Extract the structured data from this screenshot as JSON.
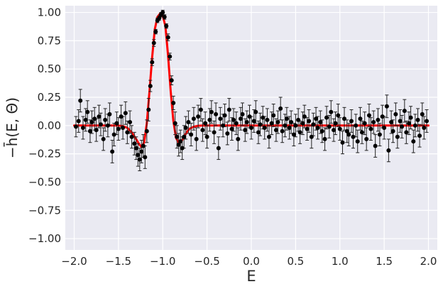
{
  "chart_data": {
    "type": "scatter",
    "style": "seaborn-darkgrid",
    "colors": {
      "background": "#EAEAF2",
      "grid": "#FFFFFF",
      "points": "#000000",
      "fit_line": "#FF0000"
    },
    "xlabel": "E",
    "ylabel": "−h̄(E, Θ)",
    "xlim": [
      -2.1,
      2.1
    ],
    "ylim": [
      -1.1,
      1.06
    ],
    "xticks": [
      -2.0,
      -1.5,
      -1.0,
      -0.5,
      0.0,
      0.5,
      1.0,
      1.5,
      2.0
    ],
    "yticks": [
      -1.0,
      -0.75,
      -0.5,
      -0.25,
      0.0,
      0.25,
      0.5,
      0.75,
      1.0
    ],
    "xtick_labels": [
      "−2.0",
      "−1.5",
      "−1.0",
      "−0.5",
      "0.0",
      "0.5",
      "1.0",
      "1.5",
      "2.0"
    ],
    "ytick_labels": [
      "−1.00",
      "−0.75",
      "−0.50",
      "−0.25",
      "0.00",
      "0.25",
      "0.50",
      "0.75",
      "1.00"
    ],
    "grid": true,
    "legend": "none",
    "series": [
      {
        "kind": "line",
        "color": "#FF0000",
        "x": [
          -2.0,
          -1.9,
          -1.8,
          -1.7,
          -1.6,
          -1.5,
          -1.45,
          -1.4,
          -1.35,
          -1.3,
          -1.27,
          -1.24,
          -1.21,
          -1.18,
          -1.15,
          -1.12,
          -1.09,
          -1.06,
          -1.03,
          -1.0,
          -0.97,
          -0.94,
          -0.91,
          -0.88,
          -0.85,
          -0.82,
          -0.79,
          -0.76,
          -0.73,
          -0.7,
          -0.65,
          -0.6,
          -0.55,
          -0.5,
          -0.4,
          -0.2,
          0.0,
          0.5,
          1.0,
          1.5,
          2.0
        ],
        "y": [
          0.0,
          0.0,
          0.0,
          0.0,
          0.0,
          0.0,
          -0.005,
          -0.02,
          -0.06,
          -0.12,
          -0.16,
          -0.19,
          -0.15,
          0.02,
          0.3,
          0.6,
          0.85,
          0.96,
          0.99,
          0.97,
          0.88,
          0.62,
          0.3,
          0.04,
          -0.11,
          -0.15,
          -0.14,
          -0.1,
          -0.06,
          -0.03,
          -0.01,
          -0.002,
          0.0,
          0.0,
          0.0,
          0.0,
          0.0,
          0.0,
          0.0,
          0.0,
          0.0
        ]
      },
      {
        "kind": "errorbar-scatter",
        "color": "#000000",
        "points": [
          {
            "x": -1.98,
            "y": -0.01,
            "err": 0.09
          },
          {
            "x": -1.95,
            "y": 0.04,
            "err": 0.1
          },
          {
            "x": -1.93,
            "y": 0.22,
            "err": 0.1
          },
          {
            "x": -1.9,
            "y": -0.02,
            "err": 0.1
          },
          {
            "x": -1.87,
            "y": 0.05,
            "err": 0.1
          },
          {
            "x": -1.85,
            "y": 0.12,
            "err": 0.1
          },
          {
            "x": -1.82,
            "y": -0.05,
            "err": 0.1
          },
          {
            "x": -1.8,
            "y": 0.03,
            "err": 0.1
          },
          {
            "x": -1.77,
            "y": 0.06,
            "err": 0.1
          },
          {
            "x": -1.75,
            "y": -0.04,
            "err": 0.1
          },
          {
            "x": -1.72,
            "y": 0.08,
            "err": 0.1
          },
          {
            "x": -1.7,
            "y": 0.01,
            "err": 0.1
          },
          {
            "x": -1.67,
            "y": -0.12,
            "err": 0.1
          },
          {
            "x": -1.65,
            "y": 0.05,
            "err": 0.1
          },
          {
            "x": -1.62,
            "y": 0.0,
            "err": 0.1
          },
          {
            "x": -1.6,
            "y": 0.1,
            "err": 0.1
          },
          {
            "x": -1.57,
            "y": -0.23,
            "err": 0.1
          },
          {
            "x": -1.55,
            "y": -0.08,
            "err": 0.1
          },
          {
            "x": -1.52,
            "y": 0.02,
            "err": 0.1
          },
          {
            "x": -1.5,
            "y": -0.03,
            "err": 0.1
          },
          {
            "x": -1.47,
            "y": 0.08,
            "err": 0.1
          },
          {
            "x": -1.45,
            "y": -0.02,
            "err": 0.1
          },
          {
            "x": -1.42,
            "y": 0.11,
            "err": 0.1
          },
          {
            "x": -1.4,
            "y": -0.06,
            "err": 0.1
          },
          {
            "x": -1.37,
            "y": 0.03,
            "err": 0.1
          },
          {
            "x": -1.35,
            "y": -0.1,
            "err": 0.1
          },
          {
            "x": -1.32,
            "y": -0.16,
            "err": 0.1
          },
          {
            "x": -1.3,
            "y": -0.2,
            "err": 0.1
          },
          {
            "x": -1.28,
            "y": -0.26,
            "err": 0.1
          },
          {
            "x": -1.26,
            "y": -0.3,
            "err": 0.1
          },
          {
            "x": -1.24,
            "y": -0.23,
            "err": 0.1
          },
          {
            "x": -1.22,
            "y": -0.18,
            "err": 0.1
          },
          {
            "x": -1.2,
            "y": -0.28,
            "err": 0.1
          },
          {
            "x": -1.18,
            "y": -0.05,
            "err": 0.1
          },
          {
            "x": -1.16,
            "y": 0.14,
            "err": 0.1
          },
          {
            "x": -1.14,
            "y": 0.35,
            "err": 0.05
          },
          {
            "x": -1.12,
            "y": 0.56,
            "err": 0.03
          },
          {
            "x": -1.1,
            "y": 0.73,
            "err": 0.03
          },
          {
            "x": -1.08,
            "y": 0.83,
            "err": 0.02
          },
          {
            "x": -1.06,
            "y": 0.93,
            "err": 0.02
          },
          {
            "x": -1.04,
            "y": 0.95,
            "err": 0.02
          },
          {
            "x": -1.02,
            "y": 0.98,
            "err": 0.02
          },
          {
            "x": -1.0,
            "y": 1.0,
            "err": 0.02
          },
          {
            "x": -0.98,
            "y": 0.96,
            "err": 0.02
          },
          {
            "x": -0.96,
            "y": 0.88,
            "err": 0.02
          },
          {
            "x": -0.94,
            "y": 0.78,
            "err": 0.03
          },
          {
            "x": -0.92,
            "y": 0.61,
            "err": 0.03
          },
          {
            "x": -0.9,
            "y": 0.4,
            "err": 0.04
          },
          {
            "x": -0.88,
            "y": 0.2,
            "err": 0.06
          },
          {
            "x": -0.86,
            "y": 0.02,
            "err": 0.1
          },
          {
            "x": -0.84,
            "y": -0.1,
            "err": 0.1
          },
          {
            "x": -0.82,
            "y": -0.17,
            "err": 0.1
          },
          {
            "x": -0.8,
            "y": -0.14,
            "err": 0.1
          },
          {
            "x": -0.78,
            "y": -0.2,
            "err": 0.1
          },
          {
            "x": -0.76,
            "y": -0.1,
            "err": 0.1
          },
          {
            "x": -0.74,
            "y": -0.02,
            "err": 0.1
          },
          {
            "x": -0.71,
            "y": 0.03,
            "err": 0.1
          },
          {
            "x": -0.68,
            "y": -0.08,
            "err": 0.1
          },
          {
            "x": -0.65,
            "y": 0.06,
            "err": 0.1
          },
          {
            "x": -0.62,
            "y": -0.12,
            "err": 0.1
          },
          {
            "x": -0.6,
            "y": 0.08,
            "err": 0.1
          },
          {
            "x": -0.57,
            "y": 0.14,
            "err": 0.1
          },
          {
            "x": -0.55,
            "y": -0.04,
            "err": 0.1
          },
          {
            "x": -0.52,
            "y": 0.02,
            "err": 0.1
          },
          {
            "x": -0.5,
            "y": -0.1,
            "err": 0.1
          },
          {
            "x": -0.47,
            "y": 0.05,
            "err": 0.1
          },
          {
            "x": -0.45,
            "y": 0.12,
            "err": 0.1
          },
          {
            "x": -0.42,
            "y": -0.06,
            "err": 0.1
          },
          {
            "x": -0.4,
            "y": 0.1,
            "err": 0.1
          },
          {
            "x": -0.37,
            "y": -0.2,
            "err": 0.1
          },
          {
            "x": -0.35,
            "y": 0.06,
            "err": 0.1
          },
          {
            "x": -0.32,
            "y": 0.0,
            "err": 0.1
          },
          {
            "x": -0.3,
            "y": 0.09,
            "err": 0.1
          },
          {
            "x": -0.27,
            "y": -0.07,
            "err": 0.1
          },
          {
            "x": -0.25,
            "y": 0.14,
            "err": 0.1
          },
          {
            "x": -0.22,
            "y": -0.03,
            "err": 0.1
          },
          {
            "x": -0.2,
            "y": 0.05,
            "err": 0.1
          },
          {
            "x": -0.17,
            "y": 0.02,
            "err": 0.1
          },
          {
            "x": -0.15,
            "y": -0.12,
            "err": 0.1
          },
          {
            "x": -0.12,
            "y": 0.06,
            "err": 0.1
          },
          {
            "x": -0.1,
            "y": 0.1,
            "err": 0.1
          },
          {
            "x": -0.07,
            "y": -0.04,
            "err": 0.1
          },
          {
            "x": -0.05,
            "y": 0.03,
            "err": 0.1
          },
          {
            "x": -0.02,
            "y": 0.08,
            "err": 0.1
          },
          {
            "x": 0.0,
            "y": -0.02,
            "err": 0.1
          },
          {
            "x": 0.03,
            "y": 0.04,
            "err": 0.1
          },
          {
            "x": 0.05,
            "y": 0.12,
            "err": 0.1
          },
          {
            "x": 0.08,
            "y": -0.06,
            "err": 0.1
          },
          {
            "x": 0.1,
            "y": 0.01,
            "err": 0.1
          },
          {
            "x": 0.13,
            "y": 0.07,
            "err": 0.1
          },
          {
            "x": 0.15,
            "y": -0.02,
            "err": 0.1
          },
          {
            "x": 0.18,
            "y": 0.05,
            "err": 0.1
          },
          {
            "x": 0.2,
            "y": -0.1,
            "err": 0.1
          },
          {
            "x": 0.23,
            "y": 0.02,
            "err": 0.1
          },
          {
            "x": 0.25,
            "y": 0.09,
            "err": 0.1
          },
          {
            "x": 0.28,
            "y": -0.04,
            "err": 0.1
          },
          {
            "x": 0.3,
            "y": 0.03,
            "err": 0.1
          },
          {
            "x": 0.33,
            "y": 0.15,
            "err": 0.1
          },
          {
            "x": 0.35,
            "y": -0.05,
            "err": 0.1
          },
          {
            "x": 0.38,
            "y": 0.0,
            "err": 0.1
          },
          {
            "x": 0.4,
            "y": 0.06,
            "err": 0.1
          },
          {
            "x": 0.43,
            "y": -0.02,
            "err": 0.1
          },
          {
            "x": 0.45,
            "y": 0.03,
            "err": 0.1
          },
          {
            "x": 0.48,
            "y": -0.08,
            "err": 0.1
          },
          {
            "x": 0.5,
            "y": 0.0,
            "err": 0.1
          },
          {
            "x": 0.53,
            "y": 0.05,
            "err": 0.1
          },
          {
            "x": 0.55,
            "y": -0.06,
            "err": 0.1
          },
          {
            "x": 0.58,
            "y": 0.02,
            "err": 0.1
          },
          {
            "x": 0.6,
            "y": 0.08,
            "err": 0.1
          },
          {
            "x": 0.63,
            "y": -0.03,
            "err": 0.1
          },
          {
            "x": 0.65,
            "y": 0.04,
            "err": 0.1
          },
          {
            "x": 0.68,
            "y": -0.1,
            "err": 0.1
          },
          {
            "x": 0.7,
            "y": 0.01,
            "err": 0.1
          },
          {
            "x": 0.73,
            "y": 0.06,
            "err": 0.1
          },
          {
            "x": 0.75,
            "y": -0.02,
            "err": 0.1
          },
          {
            "x": 0.78,
            "y": 0.03,
            "err": 0.1
          },
          {
            "x": 0.8,
            "y": -0.05,
            "err": 0.1
          },
          {
            "x": 0.83,
            "y": -0.12,
            "err": 0.1
          },
          {
            "x": 0.85,
            "y": 0.07,
            "err": 0.1
          },
          {
            "x": 0.88,
            "y": -0.01,
            "err": 0.1
          },
          {
            "x": 0.9,
            "y": 0.12,
            "err": 0.1
          },
          {
            "x": 0.93,
            "y": -0.04,
            "err": 0.1
          },
          {
            "x": 0.95,
            "y": 0.02,
            "err": 0.1
          },
          {
            "x": 0.98,
            "y": 0.09,
            "err": 0.1
          },
          {
            "x": 1.0,
            "y": -0.03,
            "err": 0.1
          },
          {
            "x": 1.03,
            "y": -0.15,
            "err": 0.1
          },
          {
            "x": 1.05,
            "y": 0.06,
            "err": 0.1
          },
          {
            "x": 1.08,
            "y": -0.05,
            "err": 0.1
          },
          {
            "x": 1.1,
            "y": -0.08,
            "err": 0.1
          },
          {
            "x": 1.13,
            "y": 0.04,
            "err": 0.1
          },
          {
            "x": 1.15,
            "y": -0.1,
            "err": 0.1
          },
          {
            "x": 1.18,
            "y": 0.0,
            "err": 0.1
          },
          {
            "x": 1.2,
            "y": -0.14,
            "err": 0.1
          },
          {
            "x": 1.23,
            "y": 0.06,
            "err": 0.1
          },
          {
            "x": 1.25,
            "y": -0.06,
            "err": 0.1
          },
          {
            "x": 1.28,
            "y": 0.02,
            "err": 0.1
          },
          {
            "x": 1.3,
            "y": -0.12,
            "err": 0.1
          },
          {
            "x": 1.33,
            "y": 0.09,
            "err": 0.1
          },
          {
            "x": 1.35,
            "y": -0.03,
            "err": 0.1
          },
          {
            "x": 1.38,
            "y": 0.03,
            "err": 0.1
          },
          {
            "x": 1.4,
            "y": -0.18,
            "err": 0.1
          },
          {
            "x": 1.43,
            "y": 0.05,
            "err": 0.1
          },
          {
            "x": 1.45,
            "y": -0.08,
            "err": 0.1
          },
          {
            "x": 1.48,
            "y": 0.08,
            "err": 0.1
          },
          {
            "x": 1.5,
            "y": -0.02,
            "err": 0.1
          },
          {
            "x": 1.53,
            "y": 0.17,
            "err": 0.1
          },
          {
            "x": 1.55,
            "y": -0.22,
            "err": 0.1
          },
          {
            "x": 1.58,
            "y": 0.03,
            "err": 0.1
          },
          {
            "x": 1.6,
            "y": -0.05,
            "err": 0.1
          },
          {
            "x": 1.63,
            "y": 0.1,
            "err": 0.1
          },
          {
            "x": 1.65,
            "y": -0.1,
            "err": 0.1
          },
          {
            "x": 1.68,
            "y": 0.04,
            "err": 0.1
          },
          {
            "x": 1.7,
            "y": -0.01,
            "err": 0.1
          },
          {
            "x": 1.73,
            "y": 0.13,
            "err": 0.1
          },
          {
            "x": 1.75,
            "y": -0.06,
            "err": 0.1
          },
          {
            "x": 1.78,
            "y": 0.02,
            "err": 0.1
          },
          {
            "x": 1.8,
            "y": 0.07,
            "err": 0.1
          },
          {
            "x": 1.83,
            "y": -0.14,
            "err": 0.1
          },
          {
            "x": 1.85,
            "y": 0.0,
            "err": 0.1
          },
          {
            "x": 1.88,
            "y": 0.05,
            "err": 0.1
          },
          {
            "x": 1.9,
            "y": -0.09,
            "err": 0.1
          },
          {
            "x": 1.93,
            "y": 0.1,
            "err": 0.1
          },
          {
            "x": 1.95,
            "y": -0.02,
            "err": 0.1
          },
          {
            "x": 1.98,
            "y": 0.04,
            "err": 0.1
          }
        ]
      }
    ]
  }
}
